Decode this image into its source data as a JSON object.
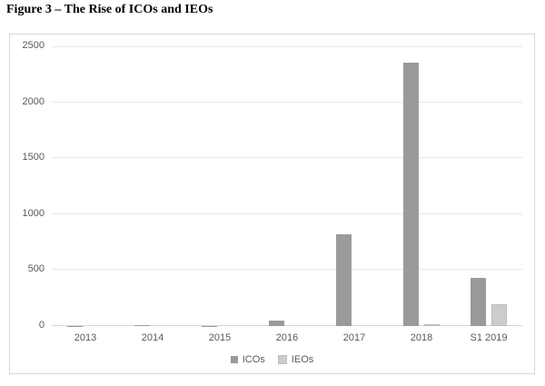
{
  "title": "Figure 3 – The Rise of ICOs and IEOs",
  "colors": {
    "ico_bar": "#9a9a9a",
    "ieo_bar": "#cccccc",
    "ieo_bar_border": "#bdbdbd",
    "gridline": "#e8e8e8",
    "axis_line": "#d6d6d6",
    "chart_border": "#d9d9d9",
    "label_text": "#595959"
  },
  "chart_data": {
    "type": "bar",
    "title": "Figure 3 – The Rise of ICOs and IEOs",
    "categories": [
      "2013",
      "2014",
      "2015",
      "2016",
      "2017",
      "2018",
      "S1 2019"
    ],
    "series": [
      {
        "name": "ICOs",
        "color_key": "ico_bar",
        "values": [
          2,
          10,
          3,
          45,
          820,
          2350,
          430
        ]
      },
      {
        "name": "IEOs",
        "color_key": "ieo_bar",
        "values": [
          0,
          0,
          0,
          0,
          0,
          15,
          195
        ]
      }
    ],
    "xlabel": "",
    "ylabel": "",
    "ylim": [
      0,
      2500
    ],
    "yticks": [
      0,
      500,
      1000,
      1500,
      2000,
      2500
    ],
    "grid": true,
    "legend_position": "bottom"
  }
}
